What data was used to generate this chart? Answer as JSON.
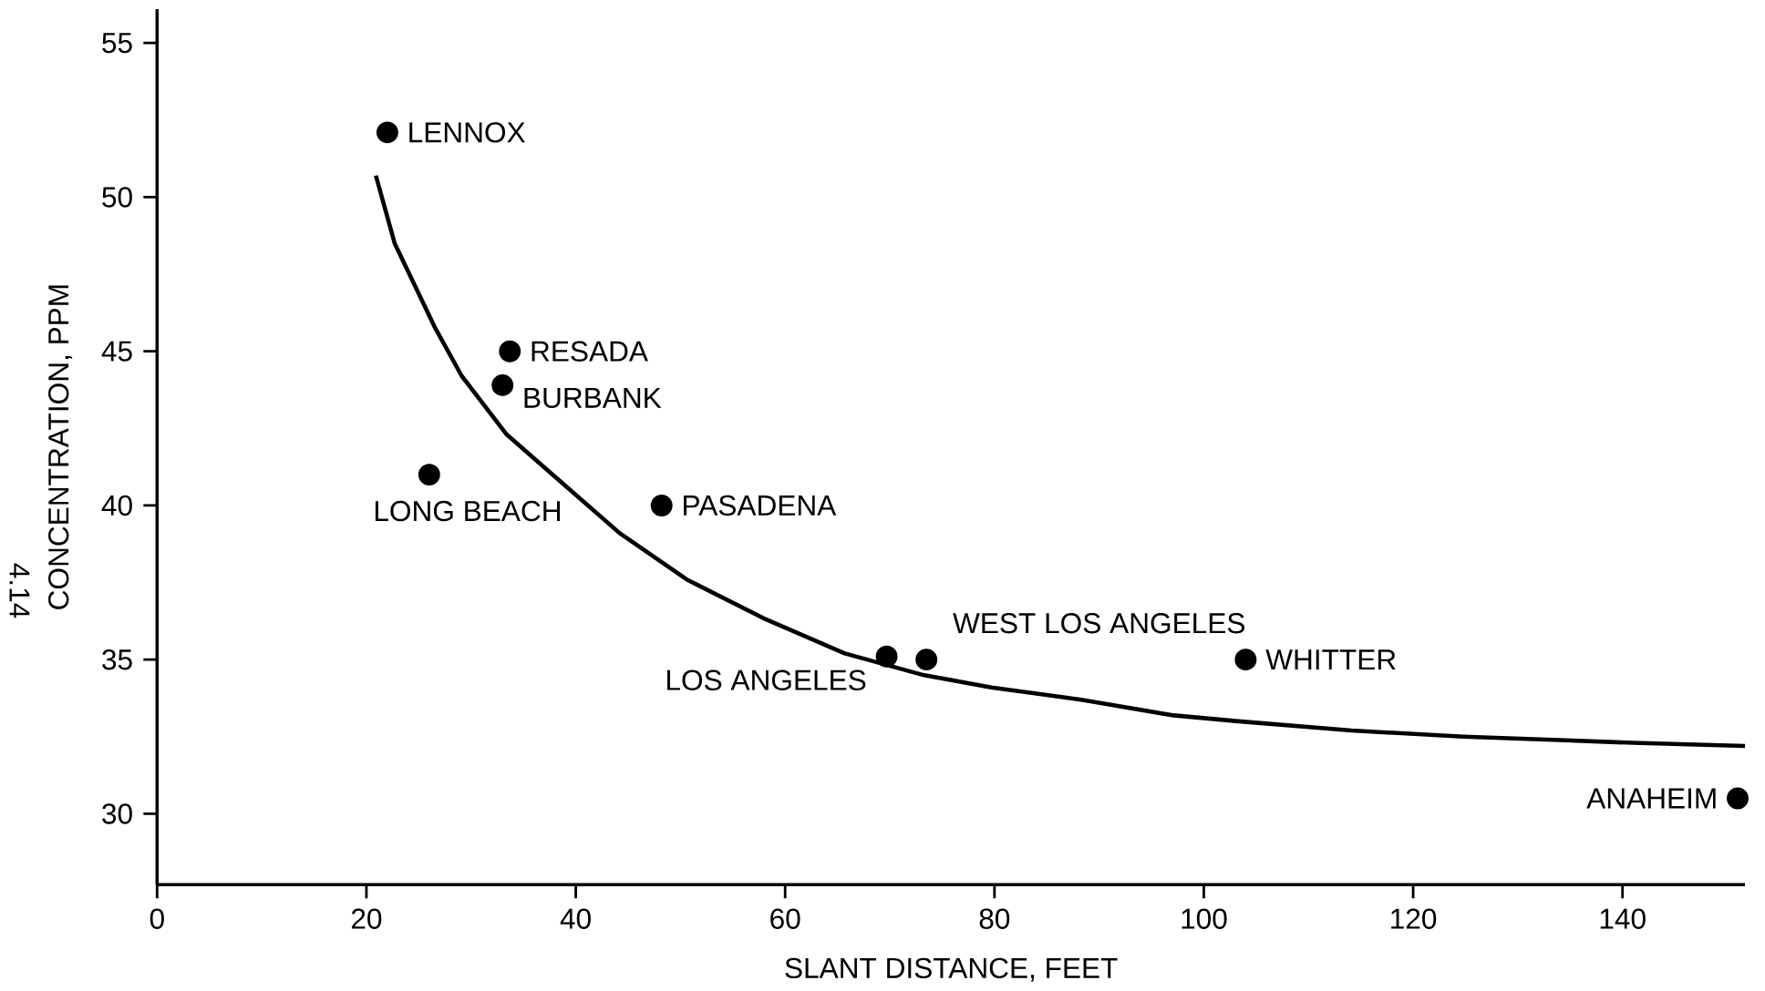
{
  "chart_data": {
    "type": "scatter",
    "xlabel": "SLANT DISTANCE, FEET",
    "ylabel": "CONCENTRATION, PPM",
    "xlim": [
      0,
      151.7
    ],
    "ylim": [
      27.7,
      56.1
    ],
    "xticks": [
      0,
      20,
      40,
      60,
      80,
      100,
      120,
      140
    ],
    "yticks": [
      30,
      35,
      40,
      45,
      50,
      55
    ],
    "grid": false,
    "series": [
      {
        "marker": "circle",
        "color": "#000000",
        "x": [
          22.0,
          33.7,
          33.0,
          26.0,
          48.2,
          69.7,
          73.5,
          104.0,
          151.0
        ],
        "values": [
          52.1,
          45.0,
          43.9,
          41.0,
          40.0,
          35.1,
          35.0,
          35.0,
          30.5
        ]
      },
      {
        "type": "line",
        "marker": "none",
        "color": "#000000",
        "x": [
          20.9,
          22.7,
          26.5,
          29.1,
          33.4,
          38.8,
          44.2,
          50.6,
          58.2,
          65.7,
          73.2,
          79.7,
          88.3,
          96.9,
          103.3,
          114.1,
          124.8,
          133.4,
          141.0,
          151.7
        ],
        "values": [
          50.7,
          48.5,
          45.8,
          44.2,
          42.3,
          40.7,
          39.1,
          37.6,
          36.3,
          35.2,
          34.5,
          34.1,
          33.7,
          33.2,
          33.0,
          32.7,
          32.5,
          32.4,
          32.3,
          32.2
        ]
      }
    ],
    "annotations": [
      {
        "text": "LENNOX",
        "x": 22.0,
        "y": 52.1
      },
      {
        "text": "RESADA",
        "x": 33.7,
        "y": 45.0
      },
      {
        "text": "BURBANK",
        "x": 33.0,
        "y": 43.9
      },
      {
        "text": "LONG BEACH",
        "x": 26.0,
        "y": 41.0
      },
      {
        "text": "PASADENA",
        "x": 48.2,
        "y": 40.0
      },
      {
        "text": "LOS ANGELES",
        "x": 69.7,
        "y": 35.1
      },
      {
        "text": "WEST LOS ANGELES",
        "x": 73.5,
        "y": 35.0
      },
      {
        "text": "WHITTER",
        "x": 104.0,
        "y": 35.0
      },
      {
        "text": "ANAHEIM",
        "x": 151.0,
        "y": 30.5
      },
      "4.14"
    ]
  }
}
